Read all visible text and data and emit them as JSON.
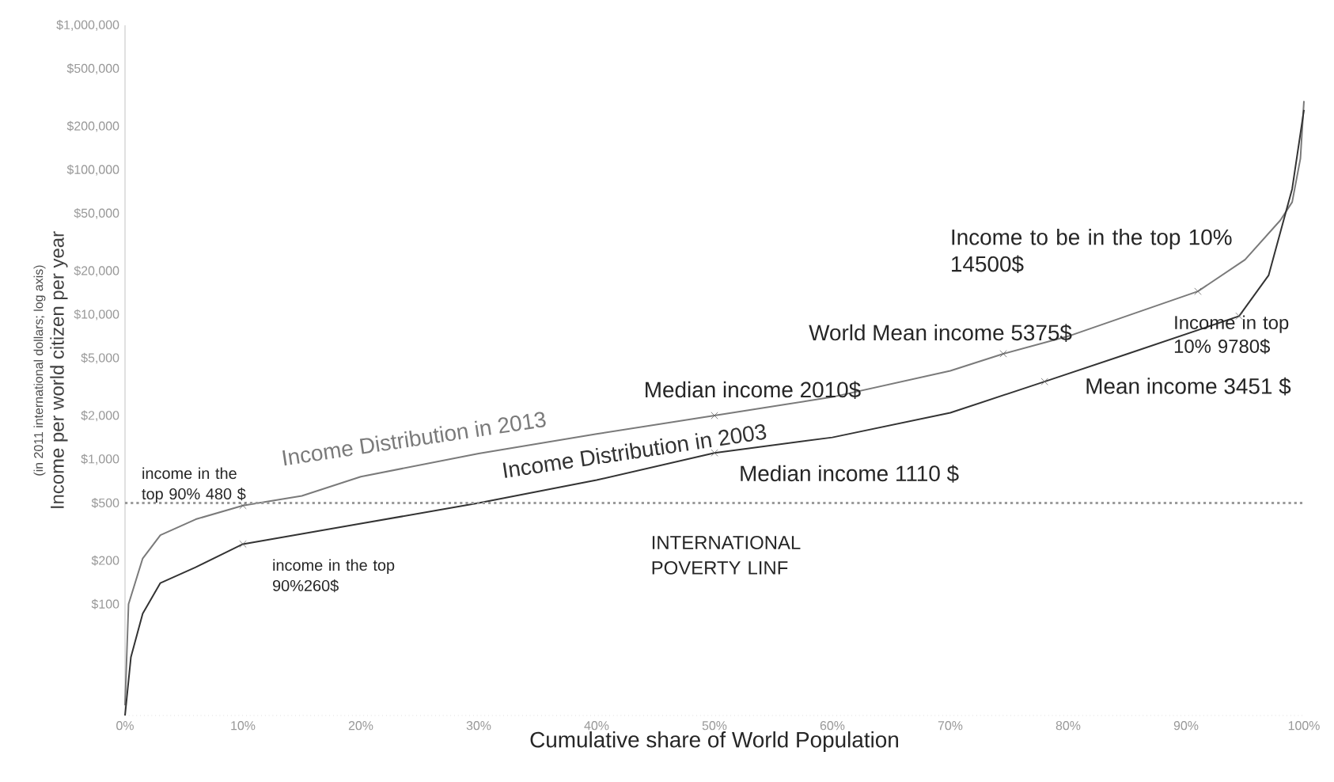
{
  "chart_data": {
    "type": "line",
    "xlabel": "Cumulative share of World Population",
    "ylabel": "Income per world citizen per year",
    "subtitle": "(in 2011 international dollars; log axis)",
    "log": "y",
    "legend": false,
    "xlim": [
      0,
      100
    ],
    "ylim": [
      17,
      1000000
    ],
    "xticks": [
      {
        "value": 0,
        "label": "0%"
      },
      {
        "value": 10,
        "label": "10%"
      },
      {
        "value": 20,
        "label": "20%"
      },
      {
        "value": 30,
        "label": "30%"
      },
      {
        "value": 40,
        "label": "40%"
      },
      {
        "value": 50,
        "label": "50%"
      },
      {
        "value": 60,
        "label": "60%"
      },
      {
        "value": 70,
        "label": "70%"
      },
      {
        "value": 80,
        "label": "80%"
      },
      {
        "value": 90,
        "label": "90%"
      },
      {
        "value": 100,
        "label": "100%"
      }
    ],
    "yticks": [
      {
        "value": 100,
        "label": "$100"
      },
      {
        "value": 200,
        "label": "$200"
      },
      {
        "value": 500,
        "label": "$500"
      },
      {
        "value": 1000,
        "label": "$1,000"
      },
      {
        "value": 2000,
        "label": "$2,000"
      },
      {
        "value": 5000,
        "label": "$5,000"
      },
      {
        "value": 10000,
        "label": "$10,000"
      },
      {
        "value": 20000,
        "label": "$20,000"
      },
      {
        "value": 50000,
        "label": "$50,000"
      },
      {
        "value": 100000,
        "label": "$100,000"
      },
      {
        "value": 200000,
        "label": "$200,000"
      },
      {
        "value": 500000,
        "label": "$500,000"
      },
      {
        "value": 1000000,
        "label": "$1,000,000"
      }
    ],
    "series": [
      {
        "name": "Income Distribution in 2013",
        "color": "#7a7a7a",
        "x": [
          0,
          0.3,
          1.5,
          3,
          6,
          10,
          15,
          20,
          30,
          40,
          50,
          60,
          70,
          74.5,
          80,
          91,
          95,
          98,
          99,
          99.7,
          100
        ],
        "values": [
          20,
          100,
          207,
          300,
          386,
          480,
          560,
          760,
          1100,
          1500,
          2010,
          2700,
          4100,
          5375,
          7100,
          14500,
          24000,
          45000,
          60000,
          120000,
          300000
        ]
      },
      {
        "name": "Income Distribution in 2003",
        "color": "#333333",
        "x": [
          0,
          0.5,
          1.5,
          3,
          6,
          10,
          20,
          30,
          40,
          50,
          60,
          70,
          78,
          85,
          94.5,
          97,
          99,
          100
        ],
        "values": [
          17,
          43,
          86,
          140,
          180,
          260,
          360,
          500,
          720,
          1110,
          1420,
          2100,
          3451,
          5350,
          9780,
          18700,
          74000,
          260000
        ]
      }
    ],
    "ref_lines": [
      {
        "axis": "y",
        "value": 500,
        "label": "INTERNATIONAL POVERTY LINF",
        "color": "#9a9a9a",
        "line_style": "dotted"
      }
    ],
    "annotations": [
      {
        "text": "income in the top 90% 480 $",
        "x": 10,
        "y": 480
      },
      {
        "text": "income in the top 90%260$",
        "x": 10,
        "y": 260
      },
      {
        "text": "Median income 2010$",
        "x": 50,
        "y": 2010
      },
      {
        "text": "World Mean income 5375$",
        "x": 74.5,
        "y": 5375
      },
      {
        "text": "Income to be in the top 10% 14500$",
        "x": 91,
        "y": 14500
      },
      {
        "text": "Income in top 10% 9780$",
        "x": 94.5,
        "y": 9780
      },
      {
        "text": "Mean income 3451 $",
        "x": 78,
        "y": 3451
      },
      {
        "text": "Median income 1110 $",
        "x": 50,
        "y": 1110
      }
    ]
  }
}
